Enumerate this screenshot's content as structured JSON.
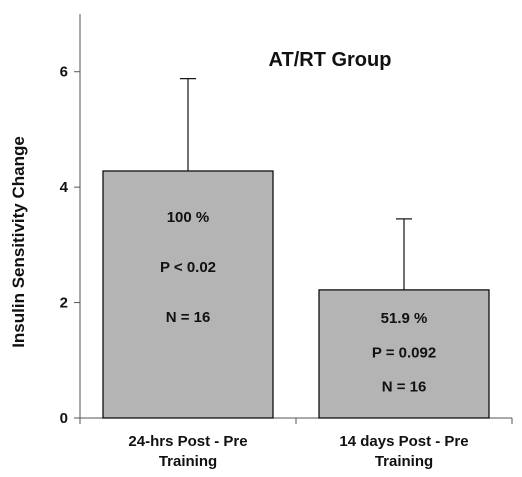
{
  "chart_data": {
    "type": "bar",
    "title": "AT/RT Group",
    "xlabel": "",
    "ylabel": "Insulin Sensitivity Change",
    "ylim": [
      0,
      7
    ],
    "yticks": [
      "0",
      "2",
      "4",
      "6"
    ],
    "categories": [
      "24-hrs Post - Pre Training",
      "14 days Post - Pre Training"
    ],
    "category_lines": [
      [
        "24-hrs Post - Pre",
        "Training"
      ],
      [
        "14 days Post - Pre",
        "Training"
      ]
    ],
    "values": [
      4.28,
      2.22
    ],
    "error_upper": [
      5.88,
      3.45
    ],
    "annotations": [
      [
        "100 %",
        "P < 0.02",
        "N = 16"
      ],
      [
        "51.9 %",
        "P = 0.092",
        "N = 16"
      ]
    ],
    "bar_color": "#b4b4b4",
    "bar_edge_color": "#000000",
    "grid": false,
    "legend": "none"
  }
}
